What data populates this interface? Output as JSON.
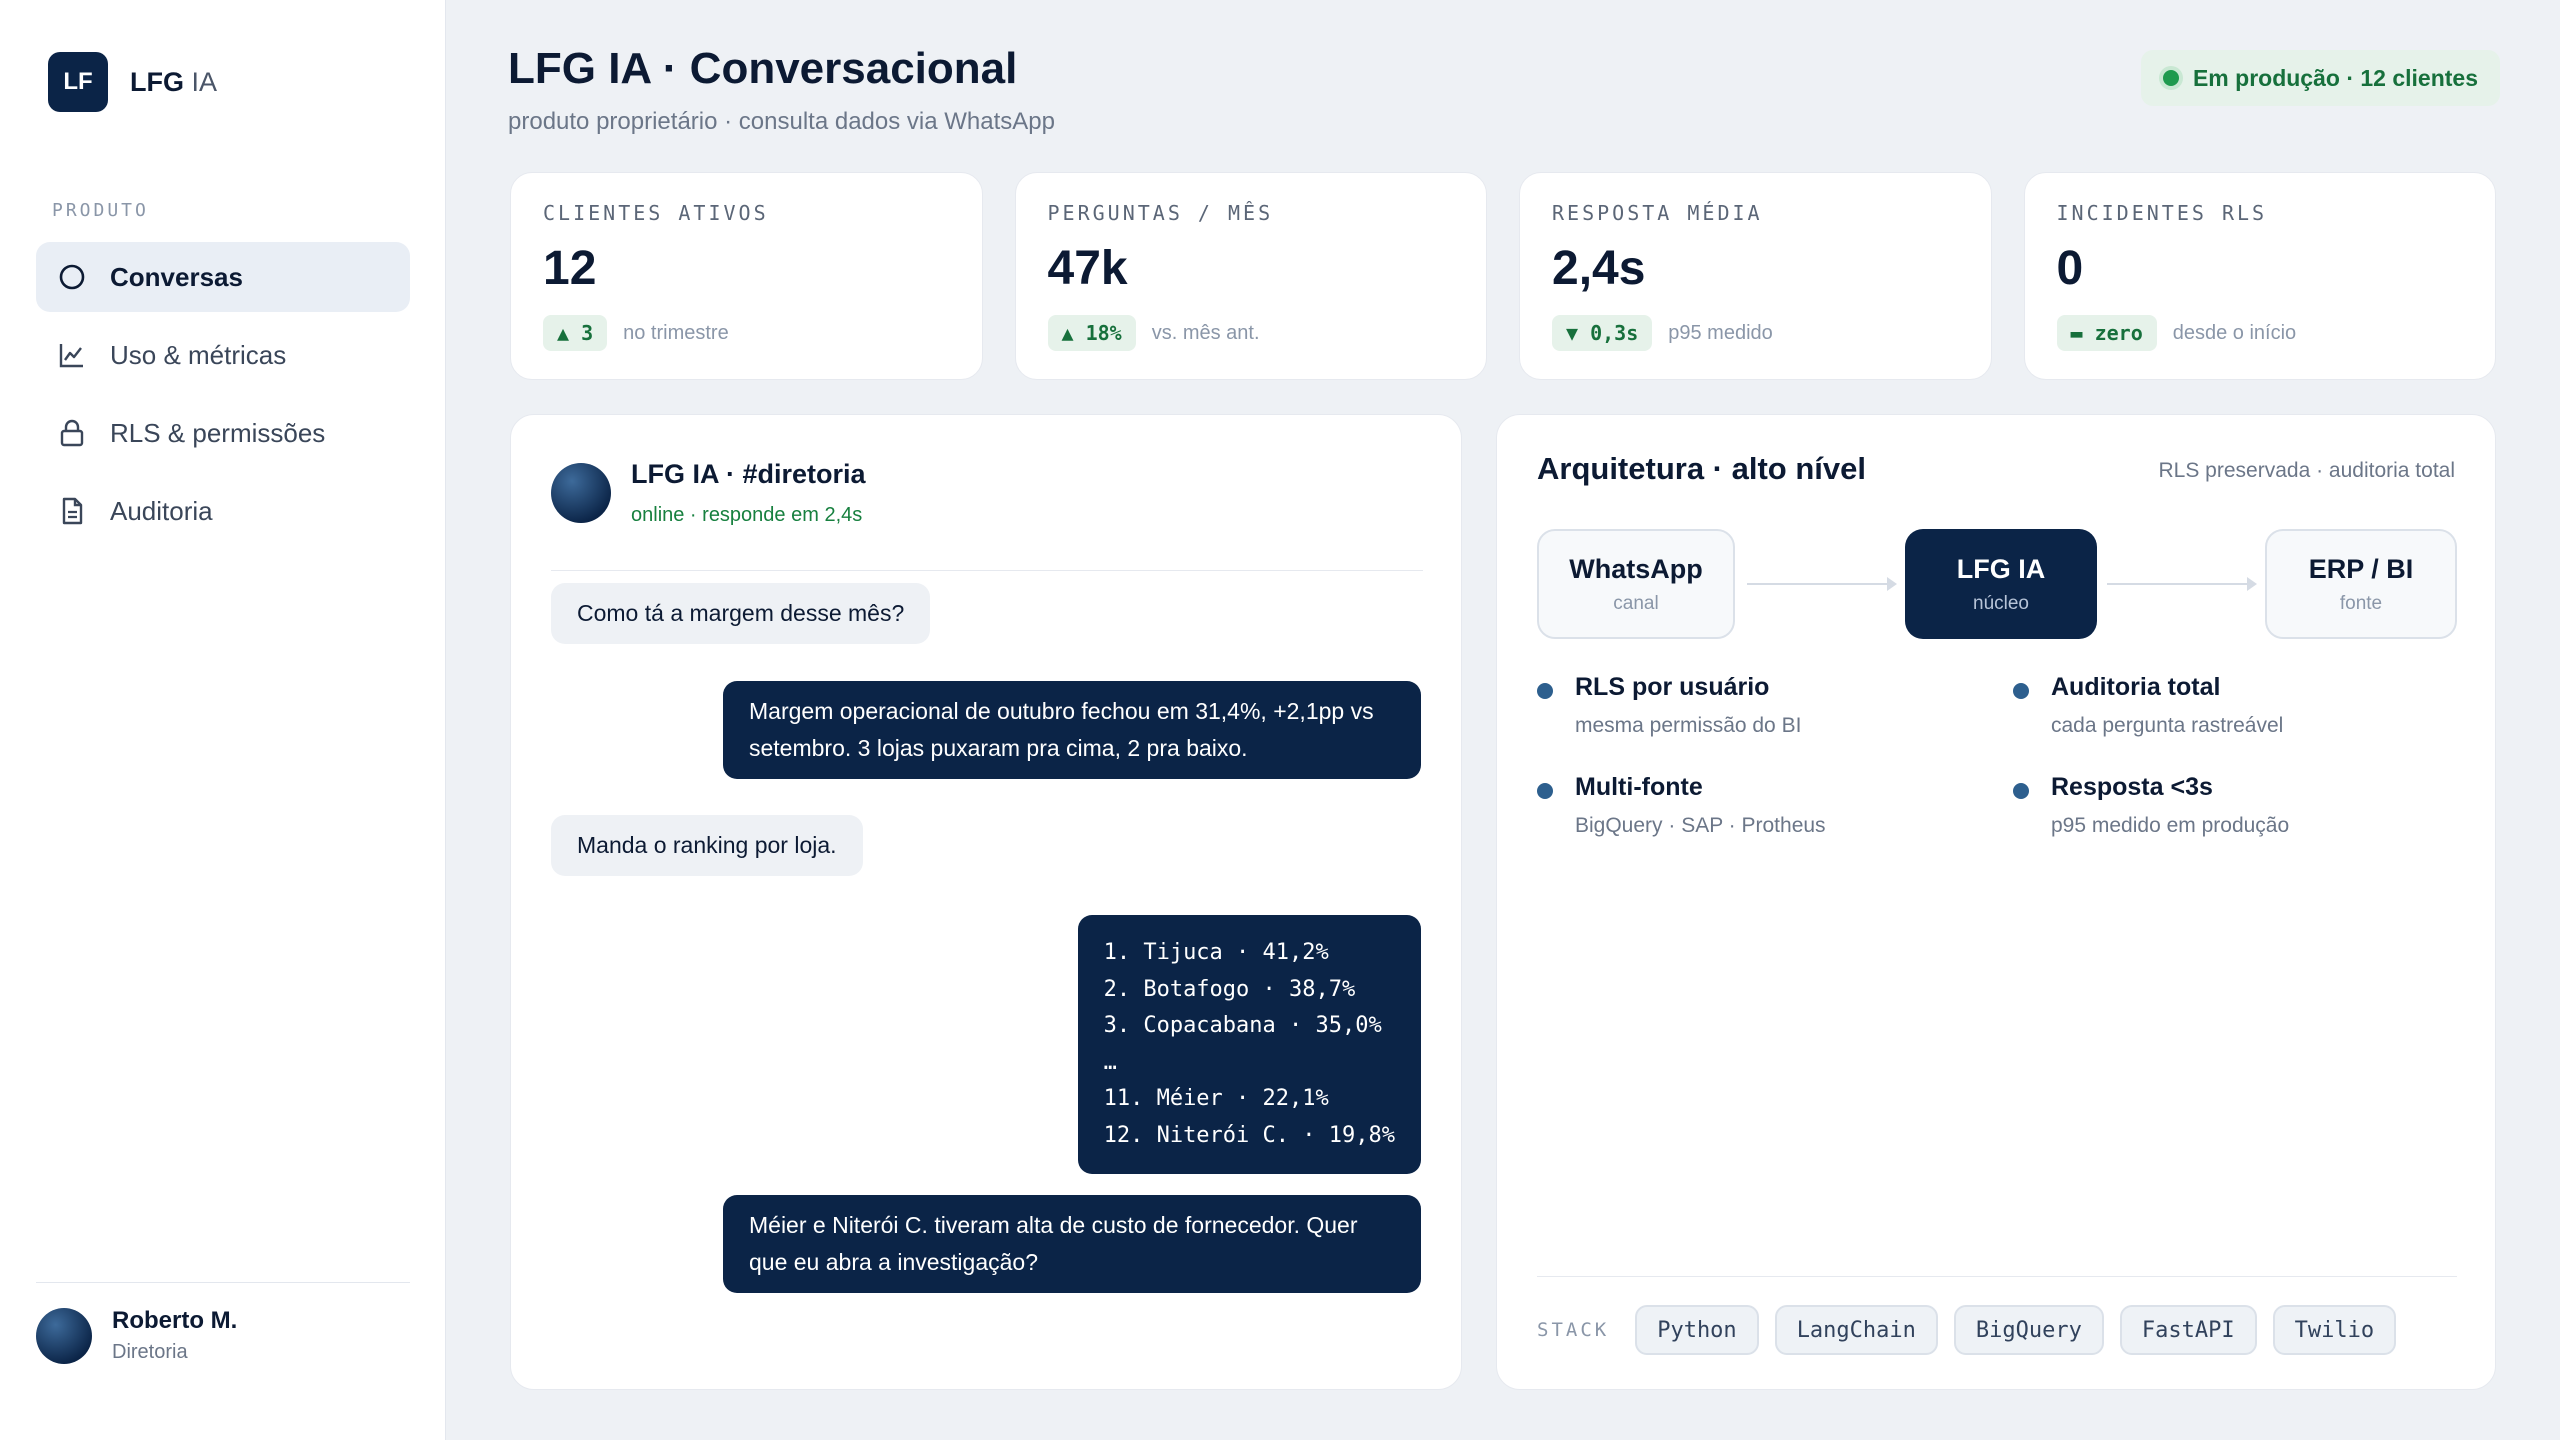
{
  "brand": {
    "logo": "LF",
    "name_bold": "LFG",
    "name_light": "IA"
  },
  "sidebar": {
    "section_label": "PRODUTO",
    "items": [
      {
        "label": "Conversas",
        "icon": "circle-icon",
        "active": true
      },
      {
        "label": "Uso & métricas",
        "icon": "chart-line-icon",
        "active": false
      },
      {
        "label": "RLS & permissões",
        "icon": "lock-icon",
        "active": false
      },
      {
        "label": "Auditoria",
        "icon": "document-icon",
        "active": false
      }
    ],
    "user": {
      "name": "Roberto M.",
      "role": "Diretoria"
    }
  },
  "header": {
    "title": "LFG IA · Conversacional",
    "subtitle": "produto proprietário · consulta dados via WhatsApp",
    "status": "Em produção · 12 clientes"
  },
  "stats": [
    {
      "label": "CLIENTES ATIVOS",
      "value": "12",
      "delta": "▲ 3",
      "note": "no trimestre"
    },
    {
      "label": "PERGUNTAS / MÊS",
      "value": "47k",
      "delta": "▲ 18%",
      "note": "vs. mês ant."
    },
    {
      "label": "RESPOSTA MÉDIA",
      "value": "2,4s",
      "delta": "▼ 0,3s",
      "note": "p95 medido"
    },
    {
      "label": "INCIDENTES RLS",
      "value": "0",
      "delta": "▬ zero",
      "note": "desde o início"
    }
  ],
  "chat": {
    "title": "LFG IA · #diretoria",
    "status": "online · responde em 2,4s",
    "messages": [
      {
        "from": "user",
        "text": "Como tá a margem desse mês?"
      },
      {
        "from": "bot",
        "text": "Margem operacional de outubro fechou em 31,4%, +2,1pp vs setembro. 3 lojas puxaram pra cima, 2 pra baixo."
      },
      {
        "from": "user",
        "text": "Manda o ranking por loja."
      },
      {
        "from": "bot",
        "text": "1. Tijuca · 41,2%\n2. Botafogo · 38,7%\n3. Copacabana · 35,0%\n…\n11. Méier · 22,1%\n12. Niterói C. · 19,8%"
      },
      {
        "from": "bot",
        "text": "Méier e Niterói C. tiveram alta de custo de fornecedor. Quer que eu abra a investigação?"
      }
    ]
  },
  "architecture": {
    "title": "Arquitetura · alto nível",
    "note": "RLS preservada · auditoria total",
    "nodes": [
      {
        "title": "WhatsApp",
        "sub": "canal"
      },
      {
        "title": "LFG IA",
        "sub": "núcleo"
      },
      {
        "title": "ERP / BI",
        "sub": "fonte"
      }
    ],
    "features": [
      {
        "title": "RLS por usuário",
        "desc": "mesma permissão do BI"
      },
      {
        "title": "Auditoria total",
        "desc": "cada pergunta rastreável"
      },
      {
        "title": "Multi-fonte",
        "desc": "BigQuery · SAP · Protheus"
      },
      {
        "title": "Resposta <3s",
        "desc": "p95 medido em produção"
      }
    ],
    "stack_label": "STACK",
    "stack": [
      "Python",
      "LangChain",
      "BigQuery",
      "FastAPI",
      "Twilio"
    ]
  },
  "colors": {
    "navy": "#0b2447",
    "success": "#17703c",
    "background": "#eef1f5"
  }
}
